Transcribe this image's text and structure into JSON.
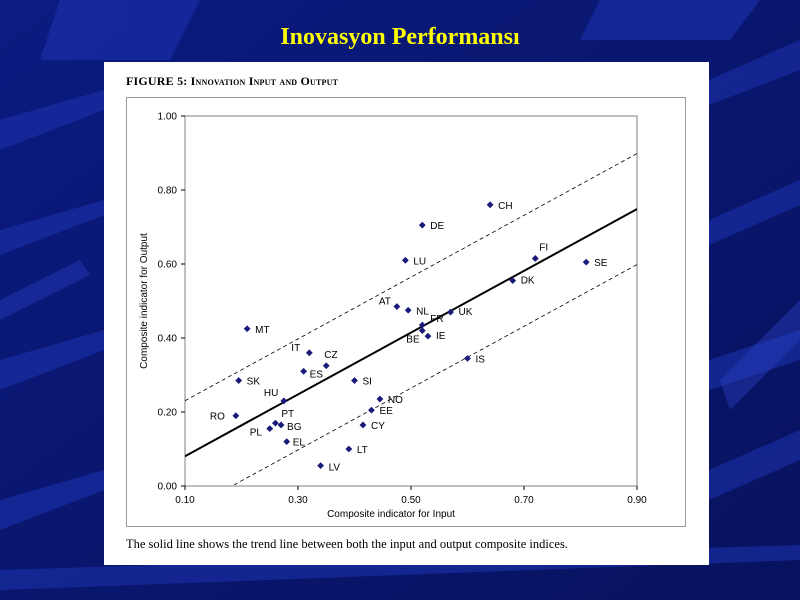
{
  "slide": {
    "title": "Inovasyon Performansı",
    "background_color": "#0a1a7a",
    "title_color": "#ffff00"
  },
  "figure": {
    "heading_prefix": "Figure 5:",
    "heading_main": "Innovation Input and Output",
    "caption": "The solid line shows the trend line between both the input and output composite indices."
  },
  "chart_data": {
    "type": "scatter",
    "xlabel": "Composite indicator for Input",
    "ylabel": "Composite indicator for Output",
    "xlim": [
      0.1,
      0.9
    ],
    "ylim": [
      0.0,
      1.0
    ],
    "xticks": [
      "0.10",
      "0.30",
      "0.50",
      "0.70",
      "0.90"
    ],
    "yticks": [
      "0.00",
      "0.20",
      "0.40",
      "0.60",
      "0.80",
      "1.00"
    ],
    "grid": false,
    "marker_color": "#1a1a7a",
    "trend_line": {
      "slope": 0.835,
      "intercept": -0.003
    },
    "band_offset": 0.15,
    "points": [
      {
        "label": "CH",
        "x": 0.64,
        "y": 0.76
      },
      {
        "label": "DE",
        "x": 0.52,
        "y": 0.705
      },
      {
        "label": "FI",
        "x": 0.72,
        "y": 0.615
      },
      {
        "label": "LU",
        "x": 0.49,
        "y": 0.61
      },
      {
        "label": "SE",
        "x": 0.81,
        "y": 0.605
      },
      {
        "label": "DK",
        "x": 0.68,
        "y": 0.555
      },
      {
        "label": "AT",
        "x": 0.475,
        "y": 0.485
      },
      {
        "label": "NL",
        "x": 0.495,
        "y": 0.475
      },
      {
        "label": "UK",
        "x": 0.57,
        "y": 0.47
      },
      {
        "label": "FR",
        "x": 0.52,
        "y": 0.435
      },
      {
        "label": "MT",
        "x": 0.21,
        "y": 0.425
      },
      {
        "label": "BE",
        "x": 0.52,
        "y": 0.42
      },
      {
        "label": "IE",
        "x": 0.53,
        "y": 0.405
      },
      {
        "label": "IT",
        "x": 0.32,
        "y": 0.36
      },
      {
        "label": "IS",
        "x": 0.6,
        "y": 0.345
      },
      {
        "label": "CZ",
        "x": 0.35,
        "y": 0.325
      },
      {
        "label": "ES",
        "x": 0.31,
        "y": 0.31
      },
      {
        "label": "SK",
        "x": 0.195,
        "y": 0.285
      },
      {
        "label": "SI",
        "x": 0.4,
        "y": 0.285
      },
      {
        "label": "NO",
        "x": 0.445,
        "y": 0.235
      },
      {
        "label": "HU",
        "x": 0.275,
        "y": 0.23
      },
      {
        "label": "EE",
        "x": 0.43,
        "y": 0.205
      },
      {
        "label": "RO",
        "x": 0.19,
        "y": 0.19
      },
      {
        "label": "PT",
        "x": 0.26,
        "y": 0.17
      },
      {
        "label": "CY",
        "x": 0.415,
        "y": 0.165
      },
      {
        "label": "BG",
        "x": 0.27,
        "y": 0.165
      },
      {
        "label": "PL",
        "x": 0.25,
        "y": 0.155
      },
      {
        "label": "EL",
        "x": 0.28,
        "y": 0.12
      },
      {
        "label": "LT",
        "x": 0.39,
        "y": 0.1
      },
      {
        "label": "LV",
        "x": 0.34,
        "y": 0.055
      }
    ]
  }
}
